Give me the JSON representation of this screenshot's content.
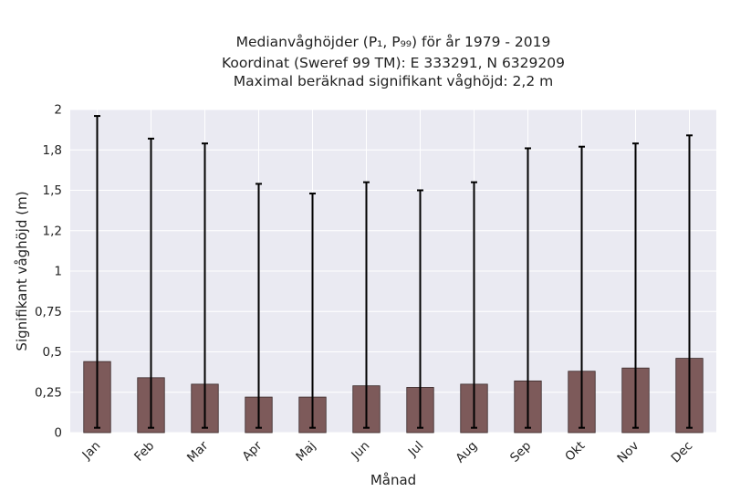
{
  "chart_data": {
    "type": "bar",
    "title_lines": [
      "Medianvåghöjder (P₁, P₉₉) för år 1979 - 2019",
      "Koordinat (Sweref 99 TM): E 333291, N 6329209",
      "Maximal beräknad signifikant våghöjd: 2,2 m"
    ],
    "xlabel": "Månad",
    "ylabel": "Signifikant våghöjd (m)",
    "categories": [
      "Jan",
      "Feb",
      "Mar",
      "Apr",
      "Maj",
      "Jun",
      "Jul",
      "Aug",
      "Sep",
      "Okt",
      "Nov",
      "Dec"
    ],
    "values": [
      0.44,
      0.34,
      0.3,
      0.22,
      0.22,
      0.29,
      0.28,
      0.3,
      0.32,
      0.38,
      0.4,
      0.46
    ],
    "p1": [
      0.03,
      0.03,
      0.03,
      0.03,
      0.03,
      0.03,
      0.03,
      0.03,
      0.03,
      0.03,
      0.03,
      0.03
    ],
    "p99": [
      1.96,
      1.82,
      1.79,
      1.54,
      1.48,
      1.55,
      1.5,
      1.55,
      1.76,
      1.77,
      1.79,
      1.84
    ],
    "ylim": [
      0,
      2.0
    ],
    "yticks": [
      0,
      0.25,
      0.5,
      0.75,
      1,
      1.25,
      1.5,
      1.75,
      2
    ],
    "ytick_labels": [
      "0",
      "0,25",
      "0,5",
      "0,75",
      "1",
      "1,2",
      "1,5",
      "1,8",
      "2"
    ],
    "grid": true,
    "colors": {
      "bar": "#7d5a5a",
      "bar_edge": "#3a2a2a",
      "errorbar": "#000000",
      "plot_background": "#eaeaf2",
      "grid": "#ffffff"
    }
  }
}
